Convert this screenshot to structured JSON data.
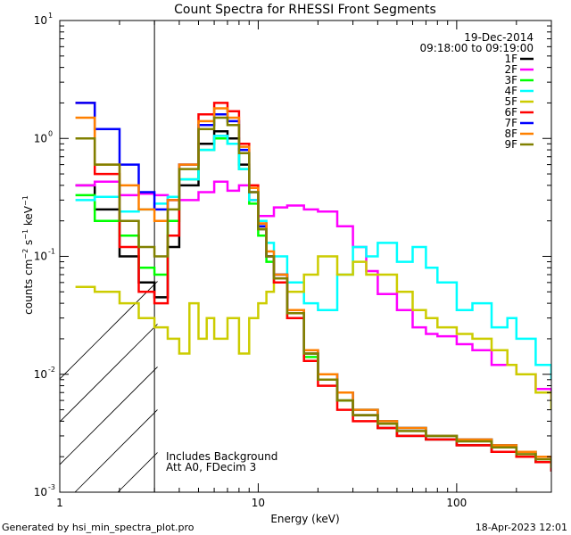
{
  "chart_data": {
    "type": "line",
    "title": "Count Spectra for RHESSI Front Segments",
    "xlabel": "Energy (keV)",
    "ylabel": "counts cm-2 s-1 keV-1",
    "xscale": "log",
    "yscale": "log",
    "xlim": [
      1,
      300
    ],
    "ylim": [
      0.001,
      10
    ],
    "grid": false,
    "legend_position": "top-right",
    "x_ticks": [
      {
        "value": 1,
        "label": "1"
      },
      {
        "value": 10,
        "label": "10"
      },
      {
        "value": 100,
        "label": "100"
      }
    ],
    "y_ticks": [
      {
        "value": 0.001,
        "mant": "10",
        "exp": "-3"
      },
      {
        "value": 0.01,
        "mant": "10",
        "exp": "-2"
      },
      {
        "value": 0.1,
        "mant": "10",
        "exp": "-1"
      },
      {
        "value": 1,
        "mant": "10",
        "exp": "0"
      },
      {
        "value": 10,
        "mant": "10",
        "exp": "1"
      }
    ],
    "shaded_region": {
      "xmin": 1,
      "xmax": 3,
      "style": "hatched"
    },
    "annotations": {
      "date": "19-Dec-2014",
      "time_range": "09:18:00 to 09:19:00",
      "background_note": "Includes Background",
      "attenuator_note": "Att A0, FDecim 3"
    },
    "series": [
      {
        "name": "1F",
        "color": "#000000",
        "x": [
          1.2,
          1.5,
          2,
          2.5,
          3,
          3.5,
          4,
          5,
          6,
          7,
          8,
          9,
          10,
          11,
          12,
          14,
          17,
          20,
          25,
          30,
          40,
          50,
          70,
          100,
          150,
          200,
          250,
          300
        ],
        "y": [
          0.4,
          0.25,
          0.1,
          0.06,
          0.045,
          0.12,
          0.4,
          0.9,
          1.15,
          1.0,
          0.6,
          0.3,
          0.17,
          0.1,
          0.07,
          0.035,
          0.015,
          0.009,
          0.006,
          0.0045,
          0.0035,
          0.003,
          0.0028,
          0.0025,
          0.0022,
          0.002,
          0.0018,
          0.0015
        ]
      },
      {
        "name": "2F",
        "color": "#ff00ff",
        "x": [
          1.2,
          1.5,
          2,
          2.5,
          3,
          3.5,
          4,
          5,
          6,
          7,
          8,
          9,
          10,
          12,
          14,
          17,
          20,
          25,
          30,
          35,
          40,
          50,
          60,
          70,
          80,
          100,
          120,
          150,
          200,
          250,
          300
        ],
        "y": [
          0.4,
          0.43,
          0.33,
          0.34,
          0.33,
          0.3,
          0.3,
          0.35,
          0.43,
          0.36,
          0.4,
          0.3,
          0.22,
          0.26,
          0.27,
          0.25,
          0.24,
          0.18,
          0.12,
          0.075,
          0.048,
          0.035,
          0.025,
          0.022,
          0.021,
          0.018,
          0.016,
          0.012,
          0.01,
          0.0075,
          0.006
        ]
      },
      {
        "name": "3F",
        "color": "#00ff00",
        "x": [
          1.2,
          1.5,
          2,
          2.5,
          3,
          3.5,
          4,
          5,
          6,
          7,
          8,
          9,
          10,
          11,
          12,
          14,
          17,
          20,
          25,
          30,
          40,
          50,
          70,
          100,
          150,
          200,
          250,
          300
        ],
        "y": [
          0.33,
          0.2,
          0.15,
          0.08,
          0.07,
          0.2,
          0.45,
          0.8,
          1.0,
          0.9,
          0.55,
          0.28,
          0.15,
          0.09,
          0.06,
          0.03,
          0.014,
          0.009,
          0.006,
          0.005,
          0.004,
          0.0035,
          0.003,
          0.0028,
          0.0025,
          0.0022,
          0.002,
          0.0018
        ]
      },
      {
        "name": "4F",
        "color": "#00ffff",
        "x": [
          1.2,
          1.5,
          2,
          2.5,
          3,
          3.5,
          4,
          5,
          6,
          7,
          8,
          9,
          10,
          11,
          12,
          14,
          17,
          20,
          25,
          30,
          35,
          40,
          50,
          60,
          70,
          80,
          100,
          120,
          150,
          180,
          200,
          250,
          300
        ],
        "y": [
          0.3,
          0.32,
          0.24,
          0.25,
          0.28,
          0.32,
          0.45,
          0.8,
          1.05,
          0.9,
          0.55,
          0.3,
          0.2,
          0.13,
          0.1,
          0.06,
          0.04,
          0.035,
          0.07,
          0.12,
          0.1,
          0.13,
          0.09,
          0.12,
          0.08,
          0.06,
          0.035,
          0.04,
          0.025,
          0.03,
          0.02,
          0.012,
          0.009
        ]
      },
      {
        "name": "5F",
        "color": "#cccc00",
        "x": [
          1.2,
          1.5,
          2,
          2.5,
          3,
          3.5,
          4,
          4.5,
          5,
          5.5,
          6,
          7,
          8,
          9,
          10,
          11,
          12,
          14,
          17,
          20,
          25,
          30,
          35,
          40,
          50,
          60,
          70,
          80,
          100,
          120,
          150,
          180,
          200,
          250,
          300
        ],
        "y": [
          0.055,
          0.05,
          0.04,
          0.03,
          0.025,
          0.02,
          0.015,
          0.04,
          0.02,
          0.03,
          0.02,
          0.03,
          0.015,
          0.03,
          0.04,
          0.05,
          0.06,
          0.05,
          0.07,
          0.1,
          0.07,
          0.09,
          0.07,
          0.07,
          0.05,
          0.035,
          0.03,
          0.025,
          0.022,
          0.02,
          0.016,
          0.012,
          0.01,
          0.007,
          0.005
        ]
      },
      {
        "name": "6F",
        "color": "#ff0000",
        "x": [
          1.2,
          1.5,
          2,
          2.5,
          3,
          3.5,
          4,
          5,
          6,
          7,
          8,
          9,
          10,
          11,
          12,
          14,
          17,
          20,
          25,
          30,
          40,
          50,
          70,
          100,
          150,
          200,
          250,
          300
        ],
        "y": [
          2.0,
          0.5,
          0.12,
          0.05,
          0.04,
          0.15,
          0.6,
          1.6,
          2.0,
          1.7,
          0.9,
          0.4,
          0.19,
          0.1,
          0.06,
          0.03,
          0.013,
          0.008,
          0.005,
          0.004,
          0.0035,
          0.003,
          0.0028,
          0.0025,
          0.0022,
          0.002,
          0.0018,
          0.0015
        ]
      },
      {
        "name": "7F",
        "color": "#0000ff",
        "x": [
          1.2,
          1.5,
          2,
          2.5,
          3,
          3.5,
          4,
          5,
          6,
          7,
          8,
          9,
          10,
          11,
          12,
          14,
          17,
          20,
          25,
          30,
          40,
          50,
          70,
          100,
          150,
          200,
          250,
          300
        ],
        "y": [
          2.0,
          1.2,
          0.6,
          0.35,
          0.25,
          0.3,
          0.6,
          1.3,
          1.6,
          1.4,
          0.8,
          0.35,
          0.18,
          0.1,
          0.07,
          0.035,
          0.016,
          0.01,
          0.007,
          0.005,
          0.004,
          0.0035,
          0.003,
          0.0028,
          0.0025,
          0.0022,
          0.002,
          0.0018
        ]
      },
      {
        "name": "8F",
        "color": "#ff8000",
        "x": [
          1.2,
          1.5,
          2,
          2.5,
          3,
          3.5,
          4,
          5,
          6,
          7,
          8,
          9,
          10,
          11,
          12,
          14,
          17,
          20,
          25,
          30,
          40,
          50,
          70,
          100,
          150,
          200,
          250,
          300
        ],
        "y": [
          1.5,
          0.6,
          0.4,
          0.25,
          0.2,
          0.3,
          0.6,
          1.4,
          1.8,
          1.5,
          0.85,
          0.38,
          0.19,
          0.11,
          0.07,
          0.035,
          0.016,
          0.01,
          0.007,
          0.005,
          0.004,
          0.0035,
          0.003,
          0.0028,
          0.0025,
          0.0022,
          0.002,
          0.0018
        ]
      },
      {
        "name": "9F",
        "color": "#808000",
        "x": [
          1.2,
          1.5,
          2,
          2.5,
          3,
          3.5,
          4,
          5,
          6,
          7,
          8,
          9,
          10,
          11,
          12,
          14,
          17,
          20,
          25,
          30,
          40,
          50,
          70,
          100,
          150,
          200,
          250,
          300
        ],
        "y": [
          1.0,
          0.6,
          0.2,
          0.12,
          0.1,
          0.25,
          0.55,
          1.2,
          1.5,
          1.3,
          0.75,
          0.35,
          0.17,
          0.1,
          0.065,
          0.033,
          0.015,
          0.009,
          0.006,
          0.0045,
          0.0038,
          0.0033,
          0.003,
          0.0027,
          0.0024,
          0.0021,
          0.0019,
          0.0016
        ]
      }
    ]
  },
  "footer": {
    "generated_by": "Generated by hsi_min_spectra_plot.pro",
    "timestamp": "18-Apr-2023 12:01"
  }
}
